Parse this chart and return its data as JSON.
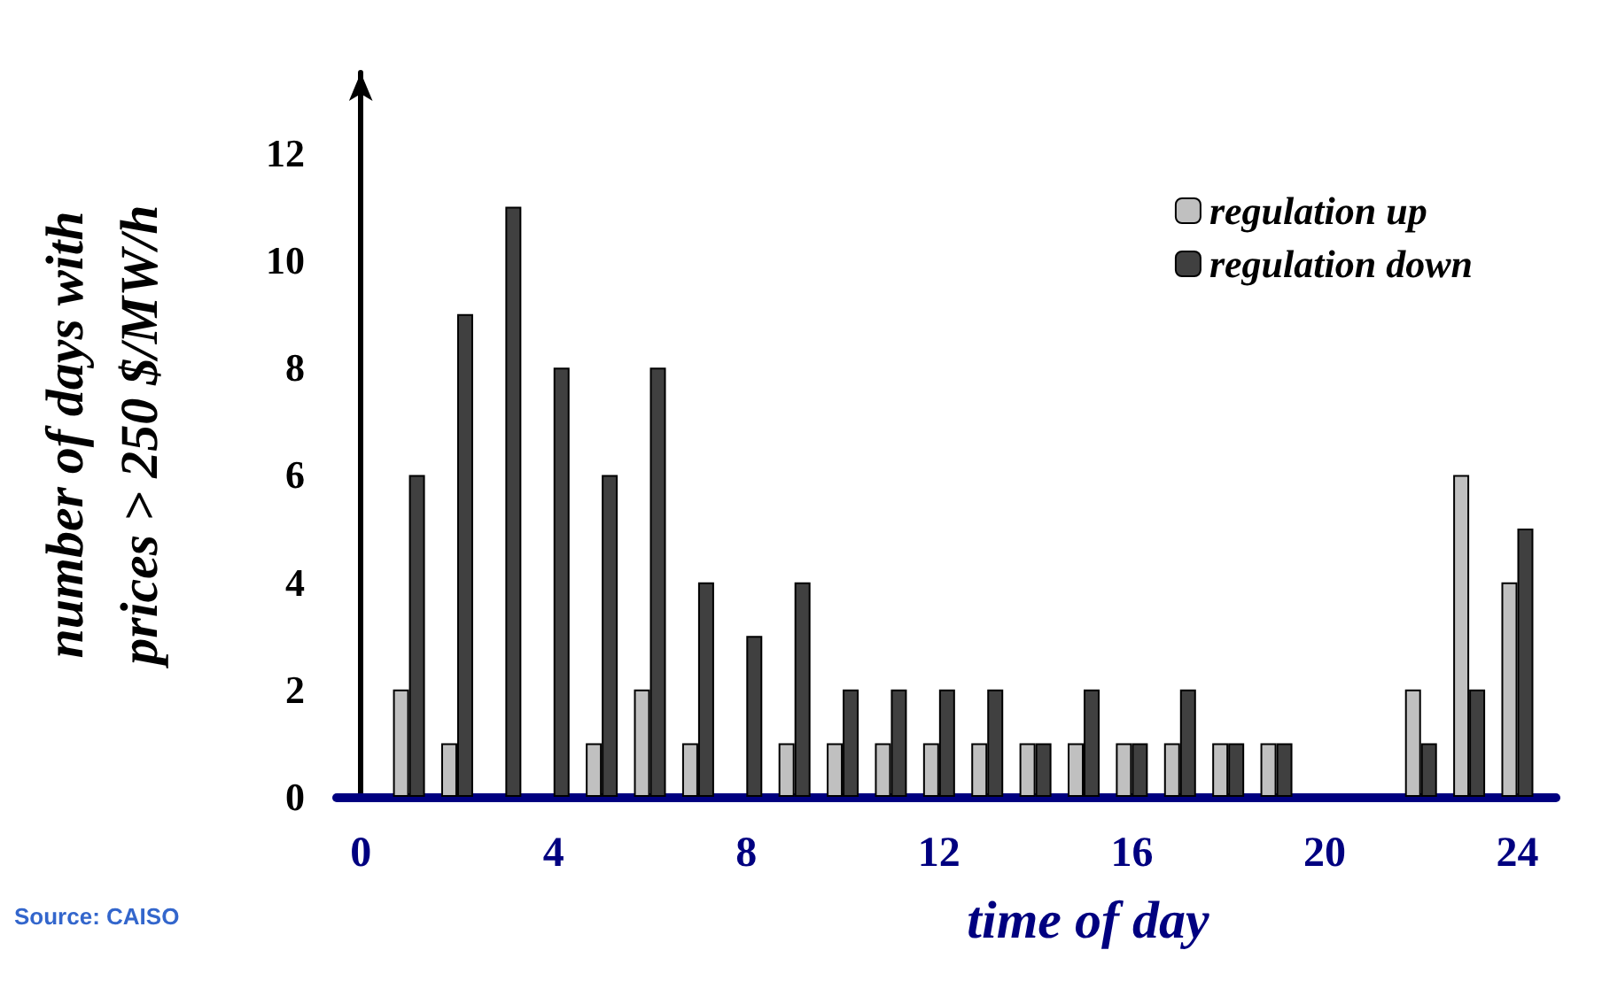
{
  "chart_data": {
    "type": "bar",
    "xlabel": "time of day",
    "ylabel": "number of days with\nprices > 250 $/MW/h",
    "x": [
      1,
      2,
      3,
      4,
      5,
      6,
      7,
      8,
      9,
      10,
      11,
      12,
      13,
      14,
      15,
      16,
      17,
      18,
      19,
      20,
      21,
      22,
      23,
      24
    ],
    "series": [
      {
        "name": "regulation up",
        "color": "#c0c0c0",
        "values": [
          2,
          1,
          0,
          0,
          1,
          2,
          1,
          0,
          1,
          1,
          1,
          1,
          1,
          1,
          1,
          1,
          1,
          1,
          1,
          0,
          0,
          2,
          6,
          4
        ]
      },
      {
        "name": "regulation down",
        "color": "#404040",
        "values": [
          6,
          9,
          11,
          8,
          6,
          8,
          4,
          3,
          4,
          2,
          2,
          2,
          2,
          1,
          2,
          1,
          2,
          1,
          1,
          0,
          0,
          1,
          2,
          5
        ]
      }
    ],
    "xlim": [
      -0.5,
      24.8
    ],
    "xticks": [
      0,
      4,
      8,
      12,
      16,
      20,
      24
    ],
    "ylim": [
      0,
      13.5
    ],
    "yticks": [
      0,
      2,
      4,
      6,
      8,
      10,
      12
    ],
    "grid": false,
    "legend": "top right",
    "annotations": [
      "Source: CAISO"
    ]
  }
}
